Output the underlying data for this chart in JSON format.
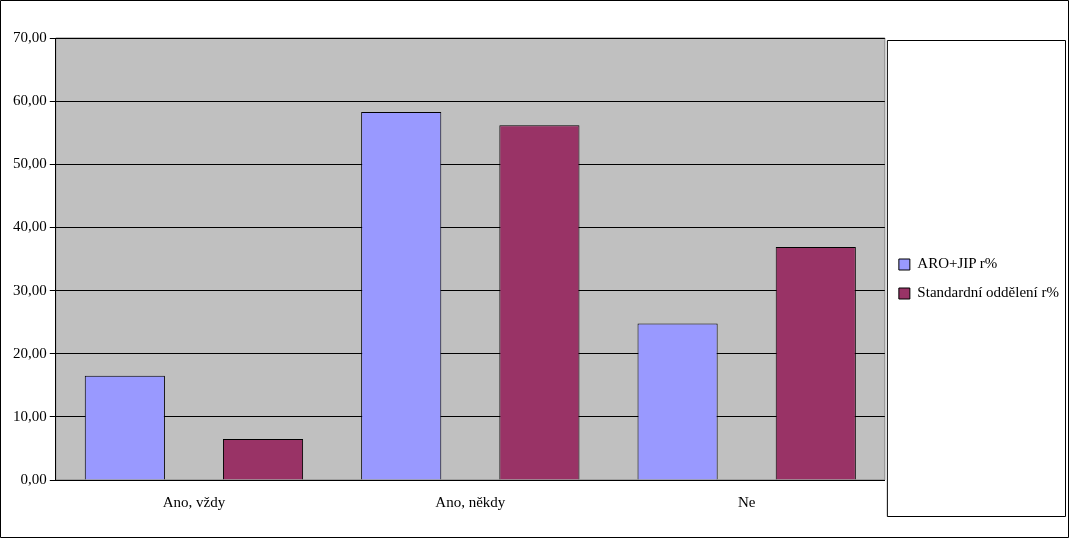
{
  "chart_data": {
    "type": "bar",
    "categories": [
      "Ano, vždy",
      "Ano, někdy",
      "Ne"
    ],
    "series": [
      {
        "name": "ARO+JIP r%",
        "color": "#9999ff",
        "values": [
          16.5,
          58.3,
          24.8
        ]
      },
      {
        "name": "Standardní oddělení r%",
        "color": "#993366",
        "values": [
          6.5,
          56.2,
          36.9
        ]
      }
    ],
    "ylim": [
      0,
      70
    ],
    "yticks": [
      {
        "value": 0,
        "label": "0,00"
      },
      {
        "value": 10,
        "label": "10,00"
      },
      {
        "value": 20,
        "label": "20,00"
      },
      {
        "value": 30,
        "label": "30,00"
      },
      {
        "value": 40,
        "label": "40,00"
      },
      {
        "value": 50,
        "label": "50,00"
      },
      {
        "value": 60,
        "label": "60,00"
      },
      {
        "value": 70,
        "label": "70,00"
      }
    ],
    "grid": "y",
    "legend": "right"
  }
}
